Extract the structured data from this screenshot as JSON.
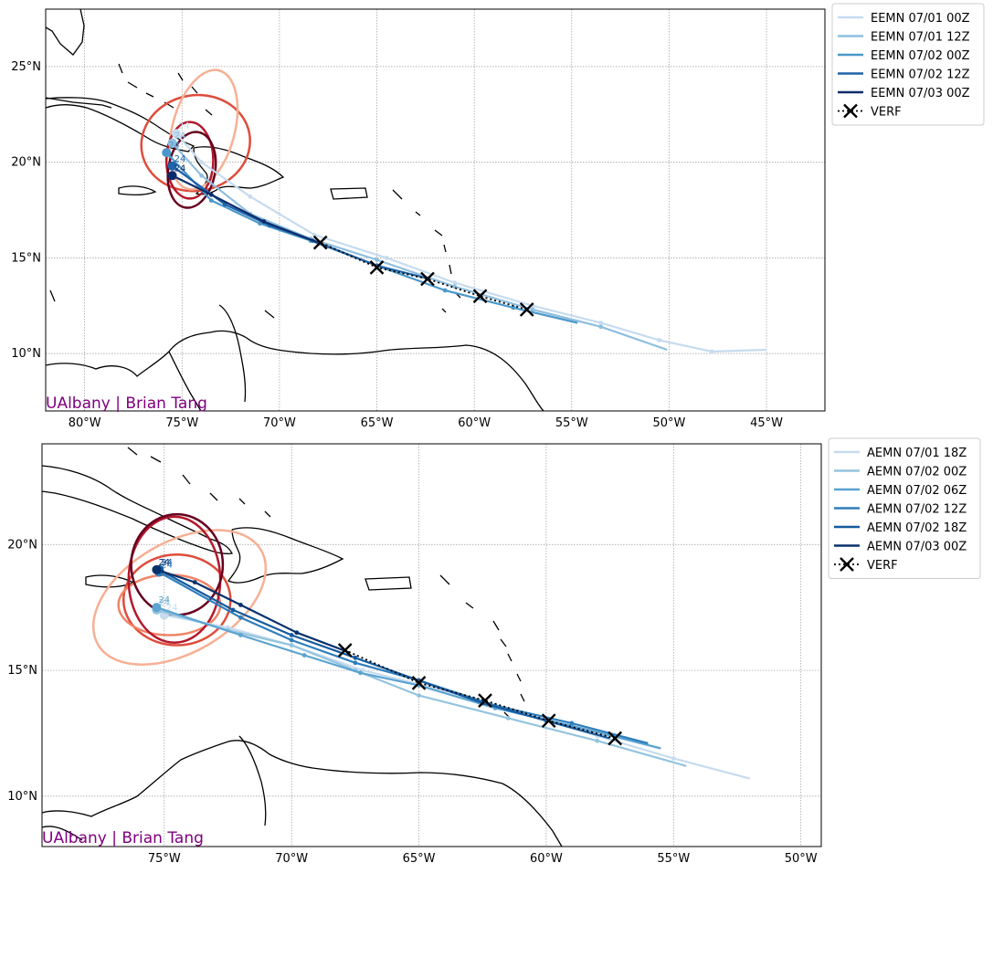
{
  "panels": [
    {
      "credit": "UAlbany | Brian Tang",
      "lon_range": [
        -82,
        -42
      ],
      "lat_range": [
        7,
        28
      ],
      "xticks": [
        {
          "v": -80,
          "label": "80°W"
        },
        {
          "v": -75,
          "label": "75°W"
        },
        {
          "v": -70,
          "label": "70°W"
        },
        {
          "v": -65,
          "label": "65°W"
        },
        {
          "v": -60,
          "label": "60°W"
        },
        {
          "v": -55,
          "label": "55°W"
        },
        {
          "v": -50,
          "label": "50°W"
        },
        {
          "v": -45,
          "label": "45°W"
        }
      ],
      "yticks": [
        {
          "v": 10,
          "label": "10°N"
        },
        {
          "v": 15,
          "label": "15°N"
        },
        {
          "v": 20,
          "label": "20°N"
        },
        {
          "v": 25,
          "label": "25°N"
        }
      ],
      "tracks": [
        {
          "name": "EEMN 07/01 00Z",
          "color": "#c6dbef",
          "hour_label": "24",
          "points": [
            [
              -45.0,
              10.2
            ],
            [
              -47.8,
              10.1
            ],
            [
              -50.5,
              10.7
            ],
            [
              -53.5,
              11.6
            ],
            [
              -57,
              12.5
            ],
            [
              -61,
              13.7
            ],
            [
              -64.5,
              15.0
            ],
            [
              -68.2,
              16.2
            ],
            [
              -71.5,
              18.2
            ],
            [
              -74.0,
              20.0
            ],
            [
              -75.3,
              21.5
            ]
          ]
        },
        {
          "name": "EEMN 07/01 12Z",
          "color": "#8fbfdf",
          "hour_label": "24",
          "points": [
            [
              -50.1,
              10.2
            ],
            [
              -53.5,
              11.4
            ],
            [
              -57,
              12.3
            ],
            [
              -61,
              13.5
            ],
            [
              -65,
              14.9
            ],
            [
              -68.4,
              16.0
            ],
            [
              -71.5,
              17.3
            ],
            [
              -74,
              19.3
            ],
            [
              -75.5,
              21.0
            ]
          ]
        },
        {
          "name": "EEMN 07/02 00Z",
          "color": "#4a98c9",
          "hour_label": "24",
          "points": [
            [
              -54.7,
              11.6
            ],
            [
              -58,
              12.4
            ],
            [
              -61.5,
              13.3
            ],
            [
              -65,
              14.6
            ],
            [
              -68.4,
              15.9
            ],
            [
              -71,
              16.8
            ],
            [
              -73.5,
              18.0
            ],
            [
              -75.8,
              20.5
            ]
          ]
        },
        {
          "name": "EEMN 07/02 12Z",
          "color": "#1f63a8",
          "hour_label": "24",
          "points": [
            [
              -62.3,
              13.9
            ],
            [
              -65,
              14.6
            ],
            [
              -68.3,
              15.9
            ],
            [
              -70.5,
              16.7
            ],
            [
              -72.8,
              17.8
            ],
            [
              -75.5,
              19.8
            ]
          ]
        },
        {
          "name": "EEMN 07/03 00Z",
          "color": "#0b2c6b",
          "hour_label": "24",
          "points": [
            [
              -68,
              15.8
            ],
            [
              -70.8,
              16.9
            ],
            [
              -73.5,
              18.3
            ],
            [
              -75.5,
              19.3
            ]
          ]
        }
      ],
      "verf": {
        "name": "VERF",
        "points": [
          [
            -57.3,
            12.3
          ],
          [
            -59.7,
            13.0
          ],
          [
            -62.4,
            13.9
          ],
          [
            -65.0,
            14.5
          ],
          [
            -67.9,
            15.8
          ]
        ]
      },
      "ellipses": [
        {
          "cx": -74.3,
          "cy": 21.0,
          "rx": 2.8,
          "ry": 2.5,
          "rot": -10,
          "color": "#de4c3c"
        },
        {
          "cx": -73.9,
          "cy": 21.7,
          "rx": 1.6,
          "ry": 3.2,
          "rot": 15,
          "color": "#f6b094"
        },
        {
          "cx": -74.6,
          "cy": 20.1,
          "rx": 1.2,
          "ry": 2.0,
          "rot": 0,
          "color": "#b3182b"
        },
        {
          "cx": -74.5,
          "cy": 19.6,
          "rx": 1.2,
          "ry": 2.0,
          "rot": 10,
          "color": "#67001f"
        }
      ]
    },
    {
      "credit": "UAlbany | Brian Tang",
      "lon_range": [
        -79.8,
        -49.2
      ],
      "lat_range": [
        8,
        24
      ],
      "xticks": [
        {
          "v": -75,
          "label": "75°W"
        },
        {
          "v": -70,
          "label": "70°W"
        },
        {
          "v": -65,
          "label": "65°W"
        },
        {
          "v": -60,
          "label": "60°W"
        },
        {
          "v": -55,
          "label": "55°W"
        },
        {
          "v": -50,
          "label": "50°W"
        }
      ],
      "yticks": [
        {
          "v": 10,
          "label": "10°N"
        },
        {
          "v": 15,
          "label": "15°N"
        },
        {
          "v": 20,
          "label": "20°N"
        }
      ],
      "tracks": [
        {
          "name": "AEMN 07/01 18Z",
          "color": "#c6dbef",
          "hour_label": "24",
          "points": [
            [
              -52.0,
              10.7
            ],
            [
              -55,
              11.5
            ],
            [
              -58,
              12.4
            ],
            [
              -61,
              13.3
            ],
            [
              -64,
              14.2
            ],
            [
              -67.2,
              15.0
            ],
            [
              -70,
              16.0
            ],
            [
              -72.5,
              16.7
            ],
            [
              -75.0,
              17.2
            ]
          ]
        },
        {
          "name": "AEMN 07/02 00Z",
          "color": "#94c4df",
          "hour_label": "24",
          "points": [
            [
              -54.5,
              11.2
            ],
            [
              -58,
              12.2
            ],
            [
              -61.5,
              13.1
            ],
            [
              -65,
              14.0
            ],
            [
              -67.5,
              15.0
            ],
            [
              -70,
              16.0
            ],
            [
              -72.5,
              16.6
            ],
            [
              -75.3,
              17.4
            ]
          ]
        },
        {
          "name": "AEMN 07/02 06Z",
          "color": "#5ba3d0",
          "hour_label": "24",
          "points": [
            [
              -55.5,
              11.9
            ],
            [
              -59,
              12.8
            ],
            [
              -62,
              13.5
            ],
            [
              -65,
              14.4
            ],
            [
              -67.3,
              14.9
            ],
            [
              -69.5,
              15.6
            ],
            [
              -72,
              16.4
            ],
            [
              -75.3,
              17.5
            ]
          ]
        },
        {
          "name": "AEMN 07/02 12Z",
          "color": "#2e7ebc",
          "hour_label": "24",
          "points": [
            [
              -56,
              12.1
            ],
            [
              -59,
              12.9
            ],
            [
              -62,
              13.6
            ],
            [
              -65,
              14.6
            ],
            [
              -67.5,
              15.3
            ],
            [
              -70,
              16.2
            ],
            [
              -72,
              17.1
            ],
            [
              -75.2,
              18.9
            ]
          ]
        },
        {
          "name": "AEMN 07/02 18Z",
          "color": "#145a9f",
          "hour_label": "24",
          "points": [
            [
              -57.5,
              12.3
            ],
            [
              -60,
              13.0
            ],
            [
              -62.5,
              13.7
            ],
            [
              -65,
              14.6
            ],
            [
              -67.5,
              15.5
            ],
            [
              -70,
              16.4
            ],
            [
              -72.3,
              17.4
            ],
            [
              -75.2,
              19.0
            ]
          ]
        },
        {
          "name": "AEMN 07/03 00Z",
          "color": "#08306b",
          "hour_label": "24",
          "points": [
            [
              -67.7,
              15.7
            ],
            [
              -69.8,
              16.5
            ],
            [
              -72,
              17.6
            ],
            [
              -73.8,
              18.5
            ],
            [
              -75.3,
              19.0
            ]
          ]
        }
      ],
      "verf": {
        "name": "VERF",
        "points": [
          [
            -57.3,
            12.3
          ],
          [
            -59.9,
            13.0
          ],
          [
            -62.4,
            13.8
          ],
          [
            -65.0,
            14.5
          ],
          [
            -67.9,
            15.8
          ]
        ]
      },
      "ellipses": [
        {
          "cx": -74.4,
          "cy": 17.9,
          "rx": 3.7,
          "ry": 2.2,
          "rot": -30,
          "color": "#f6b094"
        },
        {
          "cx": -74.5,
          "cy": 17.8,
          "rx": 2.1,
          "ry": 1.8,
          "rot": 0,
          "color": "#de4c3c"
        },
        {
          "cx": -74.8,
          "cy": 17.6,
          "rx": 2.0,
          "ry": 1.2,
          "rot": 0,
          "color": "#f08467"
        },
        {
          "cx": -74.6,
          "cy": 18.6,
          "rx": 1.8,
          "ry": 2.5,
          "rot": 0,
          "color": "#b3182b"
        },
        {
          "cx": -74.5,
          "cy": 19.2,
          "rx": 1.8,
          "ry": 2.0,
          "rot": 0,
          "color": "#67001f"
        }
      ]
    }
  ]
}
